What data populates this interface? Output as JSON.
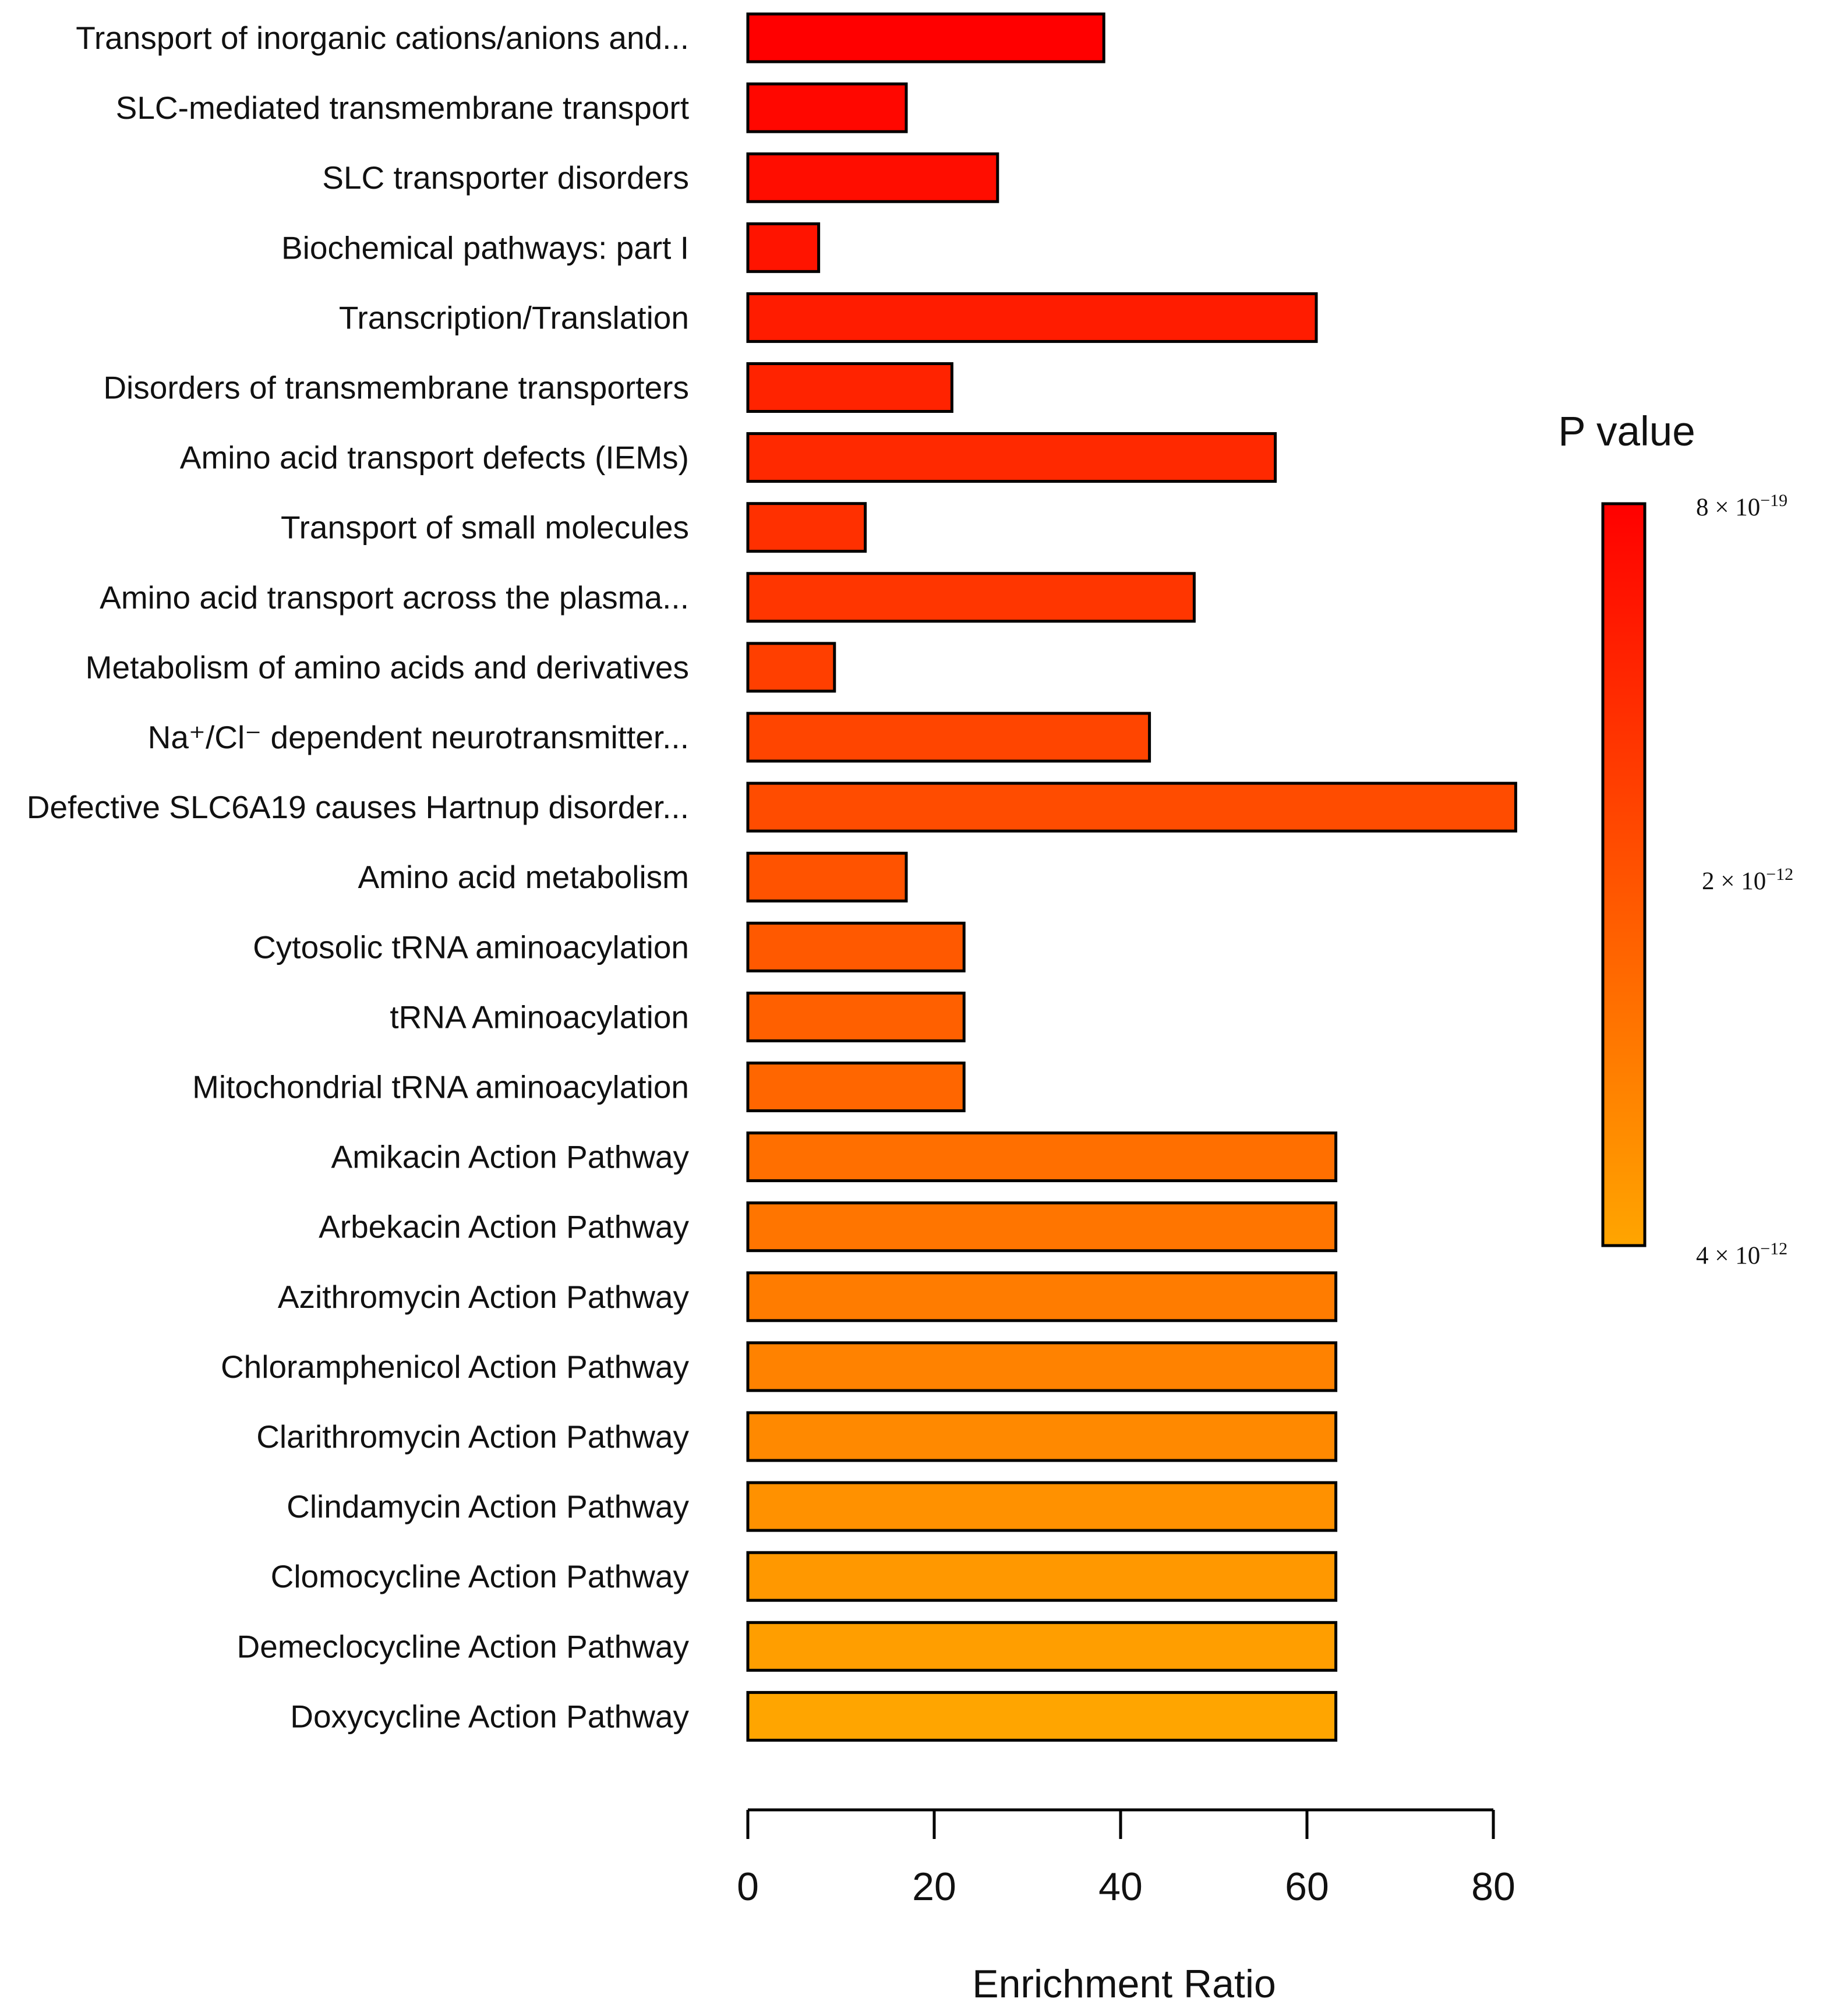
{
  "chart_data": {
    "type": "bar",
    "orientation": "horizontal",
    "xlabel": "Enrichment Ratio",
    "xlim": [
      0,
      80
    ],
    "xticks": [
      "0",
      "20",
      "40",
      "60",
      "80"
    ],
    "categories": [
      "Transport of inorganic cations/anions and...",
      "SLC-mediated transmembrane transport",
      "SLC transporter disorders",
      "Biochemical pathways: part I",
      "Transcription/Translation",
      "Disorders of transmembrane transporters",
      "Amino acid transport defects (IEMs)",
      "Transport of small molecules",
      "Amino acid transport across the plasma...",
      "Metabolism of amino acids and derivatives",
      "Na⁺/Cl⁻ dependent neurotransmitter...",
      "Defective SLC6A19 causes Hartnup disorder...",
      "Amino acid metabolism",
      "Cytosolic tRNA aminoacylation",
      "tRNA Aminoacylation",
      "Mitochondrial tRNA aminoacylation",
      "Amikacin Action Pathway",
      "Arbekacin Action Pathway",
      "Azithromycin Action Pathway",
      "Chloramphenicol Action Pathway",
      "Clarithromycin Action Pathway",
      "Clindamycin Action Pathway",
      "Clomocycline Action Pathway",
      "Demeclocycline Action Pathway",
      "Doxycycline Action Pathway"
    ],
    "values": [
      38.2,
      17.0,
      26.8,
      7.6,
      61.0,
      21.9,
      56.6,
      12.6,
      47.9,
      9.3,
      43.1,
      82.4,
      17.0,
      23.2,
      23.2,
      23.2,
      63.1,
      63.1,
      63.1,
      63.1,
      63.1,
      63.1,
      63.1,
      63.1,
      63.1
    ],
    "color_rank": [
      0,
      0.04,
      0.08,
      0.12,
      0.17,
      0.21,
      0.25,
      0.29,
      0.33,
      0.38,
      0.42,
      0.46,
      0.5,
      0.54,
      0.58,
      0.62,
      0.67,
      0.71,
      0.75,
      0.79,
      0.83,
      0.88,
      0.92,
      0.96,
      1.0
    ],
    "colors": {
      "high_significance": "#ff0000",
      "low_significance": "#ffa500",
      "bar_stroke": "#000000"
    },
    "legend": {
      "title": "P value",
      "position": "right",
      "ticks": [
        {
          "base": "8 × 10",
          "exp": "−19"
        },
        {
          "base": "2 × 10",
          "exp": "−12"
        },
        {
          "base": "4 × 10",
          "exp": "−12"
        }
      ]
    }
  }
}
